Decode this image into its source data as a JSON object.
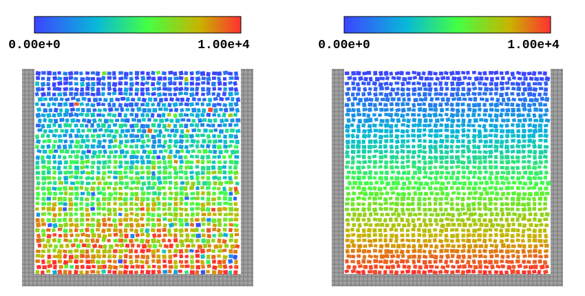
{
  "panels": [
    {
      "colorbar": {
        "min_label": "0.00e+0",
        "max_label": "1.00e+4"
      }
    },
    {
      "colorbar": {
        "min_label": "0.00e+0",
        "max_label": "1.00e+4"
      }
    }
  ]
}
